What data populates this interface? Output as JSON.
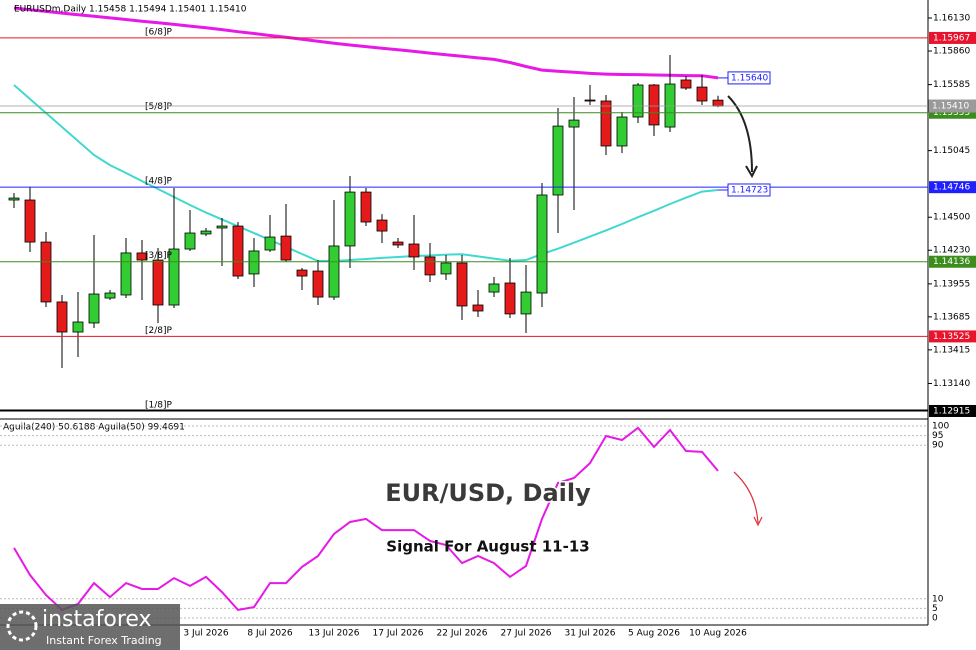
{
  "chart_data": [
    {
      "type": "candlestick",
      "title": "EURUSDm,Daily  1.15458 1.15494 1.15401 1.15410",
      "categories": [
        null,
        null,
        null,
        null,
        null,
        null,
        null,
        null,
        null,
        null,
        null,
        null,
        "3 Jul 2026",
        null,
        null,
        null,
        "8 Jul 2026",
        null,
        null,
        null,
        "13 Jul 2026",
        null,
        null,
        null,
        "17 Jul 2026",
        null,
        null,
        null,
        "22 Jul 2026",
        null,
        null,
        null,
        "27 Jul 2026",
        null,
        null,
        null,
        "31 Jul 2026",
        null,
        null,
        null,
        "5 Aug 2026",
        null,
        null,
        null,
        "10 Aug 2026"
      ],
      "open": [
        1.14641,
        1.14641,
        1.14297,
        1.13807,
        1.13561,
        1.13635,
        1.13839,
        1.13864,
        1.14208,
        1.1415,
        1.13782,
        1.1424,
        1.14363,
        1.14412,
        1.14428,
        1.14036,
        1.14232,
        1.14346,
        1.14068,
        1.1406,
        1.13847,
        1.14265,
        1.14706,
        1.14477,
        1.14297,
        1.14281,
        1.14175,
        1.14036,
        1.14126,
        1.13782,
        1.13888,
        1.13962,
        1.13709,
        1.1388,
        1.14682,
        1.15238,
        1.15459,
        1.15451,
        1.15083,
        1.1532,
        1.15582,
        1.15238,
        1.15623,
        1.15565,
        1.15458
      ],
      "high": [
        1.14698,
        1.14747,
        1.14379,
        1.13864,
        1.13888,
        1.14355,
        1.13905,
        1.1433,
        1.14314,
        1.14248,
        1.14739,
        1.14559,
        1.14412,
        1.14494,
        1.14461,
        1.1433,
        1.14518,
        1.14608,
        1.14085,
        1.1415,
        1.14641,
        1.14837,
        1.14739,
        1.14526,
        1.1433,
        1.14518,
        1.14289,
        1.14191,
        1.14191,
        1.13905,
        1.14011,
        1.14167,
        1.14109,
        1.1478,
        1.15394,
        1.15484,
        1.15582,
        1.155,
        1.15361,
        1.15598,
        1.1559,
        1.15827,
        1.15655,
        1.15663,
        1.15494
      ],
      "low": [
        1.14576,
        1.14216,
        1.13766,
        1.13267,
        1.13357,
        1.13594,
        1.13823,
        1.13839,
        1.13823,
        1.13635,
        1.13758,
        1.14224,
        1.14346,
        1.14101,
        1.13995,
        1.13929,
        1.14216,
        1.14134,
        1.13905,
        1.13782,
        1.13823,
        1.14085,
        1.14428,
        1.14289,
        1.14248,
        1.14068,
        1.1397,
        1.13987,
        1.13659,
        1.13684,
        1.13847,
        1.13676,
        1.13553,
        1.13766,
        1.14371,
        1.14559,
        1.15418,
        1.15009,
        1.15025,
        1.15271,
        1.15165,
        1.15197,
        1.15541,
        1.15418,
        1.15401
      ],
      "close": [
        1.14657,
        1.14297,
        1.13807,
        1.13561,
        1.13643,
        1.13872,
        1.1388,
        1.14208,
        1.1415,
        1.13782,
        1.1424,
        1.14371,
        1.14387,
        1.14428,
        1.14019,
        1.14224,
        1.14338,
        1.1415,
        1.14019,
        1.13847,
        1.14265,
        1.14706,
        1.14461,
        1.14387,
        1.14273,
        1.14175,
        1.14028,
        1.14126,
        1.13774,
        1.13733,
        1.13954,
        1.13709,
        1.13888,
        1.14682,
        1.15246,
        1.15295,
        1.15451,
        1.15083,
        1.1532,
        1.15582,
        1.15255,
        1.1559,
        1.15557,
        1.15451,
        1.1541
      ],
      "up_color": "#32cd32",
      "down_color": "#e51a1a",
      "lines": [
        {
          "color": "#e619e6",
          "values": [
            1.16212,
            1.16198,
            1.16184,
            1.1617,
            1.16156,
            1.16144,
            1.16131,
            1.16118,
            1.16104,
            1.16091,
            1.16078,
            1.16064,
            1.1605,
            1.16035,
            1.16018,
            1.16003,
            1.15987,
            1.15972,
            1.15956,
            1.1594,
            1.15924,
            1.15909,
            1.15896,
            1.15883,
            1.1587,
            1.15857,
            1.15843,
            1.1583,
            1.15817,
            1.15804,
            1.15791,
            1.15766,
            1.15733,
            1.15704,
            1.15695,
            1.15686,
            1.15677,
            1.15671,
            1.15668,
            1.15667,
            1.15664,
            1.15662,
            1.15659,
            1.15658,
            1.1564
          ]
        },
        {
          "color": "#40d8d0",
          "values": [
            1.15582,
            1.15467,
            1.15353,
            1.15238,
            1.15124,
            1.15009,
            1.14927,
            1.14862,
            1.14796,
            1.14731,
            1.14666,
            1.146,
            1.14538,
            1.14482,
            1.14426,
            1.1437,
            1.14314,
            1.14257,
            1.14199,
            1.14142,
            1.14142,
            1.1415,
            1.14158,
            1.14167,
            1.14175,
            1.14183,
            1.14187,
            1.14194,
            1.14197,
            1.1418,
            1.14162,
            1.14144,
            1.1415,
            1.14199,
            1.14243,
            1.14292,
            1.14342,
            1.14392,
            1.14445,
            1.145,
            1.14553,
            1.14608,
            1.1466,
            1.1471,
            1.14723
          ]
        }
      ],
      "ylim": [
        1.12923,
        1.16261
      ],
      "yticks": [
        {
          "value": 1.1613,
          "label": "1.16130"
        },
        {
          "value": 1.1586,
          "label": "1.15860"
        },
        1.15585,
        1.15045,
        {
          "value": 1.145,
          "label": "1.14500"
        },
        {
          "value": 1.1423,
          "label": "1.14230"
        },
        1.13955,
        1.13685,
        1.13415,
        {
          "value": 1.1314,
          "label": "1.13140"
        }
      ],
      "levels": [
        {
          "name": "[6/8]P",
          "value": 1.15967,
          "color": "#e8132c"
        },
        {
          "name": "[5/8]P",
          "value": 1.15355,
          "color": "#3c8c1e"
        },
        {
          "name": "[4/8]P",
          "value": 1.14746,
          "color": "#2020ff"
        },
        {
          "name": "[3/8]P",
          "value": 1.14136,
          "color": "#3c8c1e"
        },
        {
          "name": "[2/8]P",
          "value": 1.13525,
          "color": "#e8132c"
        },
        {
          "name": "[1/8]P",
          "value": 1.12915,
          "color": "#000000"
        }
      ],
      "markers": [
        {
          "value": 1.1564,
          "label": "1.15640",
          "color": "#2020ff"
        },
        {
          "value": 1.14723,
          "label": "1.14723",
          "color": "#2020ff"
        },
        {
          "value": 1.1541,
          "label": "1.15410",
          "color": "#9a9a9a"
        }
      ]
    },
    {
      "type": "line",
      "title": "Aguila(240) 50.6188  Aguila(50) 99.4691",
      "series": [
        {
          "color": "#e619e6",
          "values": [
            36.5,
            22.4,
            12.0,
            4.2,
            7.3,
            18.2,
            10.9,
            18.2,
            15.1,
            15.1,
            20.8,
            16.7,
            21.4,
            13.5,
            4.2,
            5.7,
            18.2,
            18.2,
            26.6,
            32.3,
            43.8,
            50.0,
            51.6,
            45.8,
            45.8,
            45.8,
            40.1,
            38.0,
            28.6,
            32.3,
            28.6,
            21.4,
            27.1,
            51.6,
            70.3,
            72.9,
            80.7,
            94.8,
            92.7,
            99.0,
            89.1,
            97.9,
            87.0,
            86.5,
            76.6
          ]
        }
      ],
      "ylim": [
        0,
        100
      ],
      "yticks": [
        0,
        5,
        10,
        90,
        95,
        100
      ]
    }
  ],
  "annotations": [
    "EUR/USD, Daily",
    "Signal For August 11-13"
  ],
  "watermark": {
    "brand": "instaforex",
    "tagline": "Instant Forex Trading"
  }
}
